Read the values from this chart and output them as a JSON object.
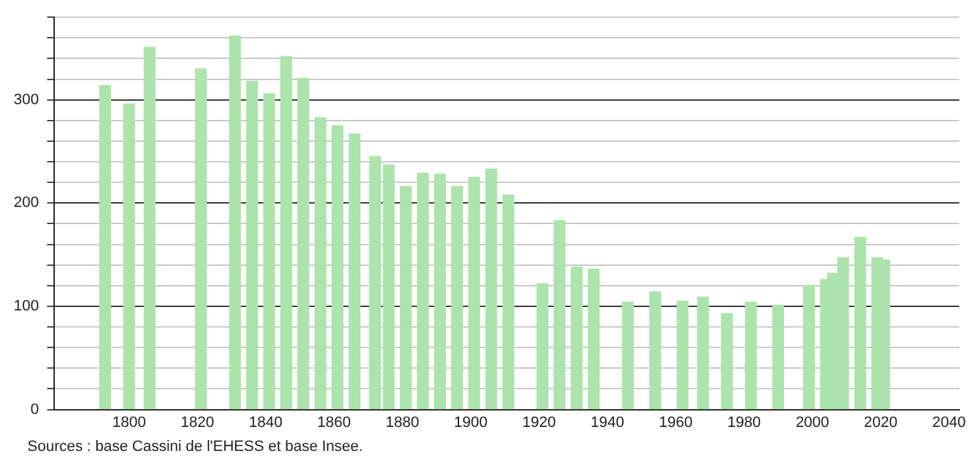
{
  "chart_data": {
    "type": "bar",
    "x": [
      1793,
      1800,
      1806,
      1821,
      1831,
      1836,
      1841,
      1846,
      1851,
      1856,
      1861,
      1866,
      1872,
      1876,
      1881,
      1886,
      1891,
      1896,
      1901,
      1906,
      1911,
      1921,
      1926,
      1931,
      1936,
      1946,
      1954,
      1962,
      1968,
      1975,
      1982,
      1990,
      1999,
      2004,
      2006,
      2009,
      2014,
      2019,
      2021
    ],
    "values": [
      314,
      296,
      351,
      330,
      362,
      318,
      306,
      342,
      321,
      283,
      275,
      267,
      245,
      237,
      216,
      229,
      228,
      216,
      225,
      233,
      208,
      122,
      183,
      138,
      136,
      104,
      114,
      105,
      109,
      93,
      104,
      101,
      120,
      126,
      132,
      147,
      167,
      147,
      145
    ],
    "color": "#ade3ad",
    "xlim": [
      1778,
      2043
    ],
    "xticks": [
      1800,
      1820,
      1840,
      1860,
      1880,
      1900,
      1920,
      1940,
      1960,
      1980,
      2000,
      2020,
      2040
    ],
    "ylim": [
      0,
      380
    ],
    "yticks": [
      0,
      {
        "value": 20,
        "label": null
      },
      {
        "value": 40,
        "label": null
      },
      {
        "value": 60,
        "label": null
      },
      {
        "value": 80,
        "label": null
      },
      100,
      {
        "value": 120,
        "label": null
      },
      {
        "value": 140,
        "label": null
      },
      {
        "value": 160,
        "label": null
      },
      {
        "value": 180,
        "label": null
      },
      200,
      {
        "value": 220,
        "label": null
      },
      {
        "value": 240,
        "label": null
      },
      {
        "value": 260,
        "label": null
      },
      {
        "value": 280,
        "label": null
      },
      300,
      {
        "value": 320,
        "label": null
      },
      {
        "value": 340,
        "label": null
      },
      {
        "value": 360,
        "label": null
      },
      {
        "value": 380,
        "label": null
      }
    ],
    "grid": "y",
    "legend": false,
    "annotations": [
      "Sources : base Cassini de l'EHESS et base Insee."
    ]
  }
}
